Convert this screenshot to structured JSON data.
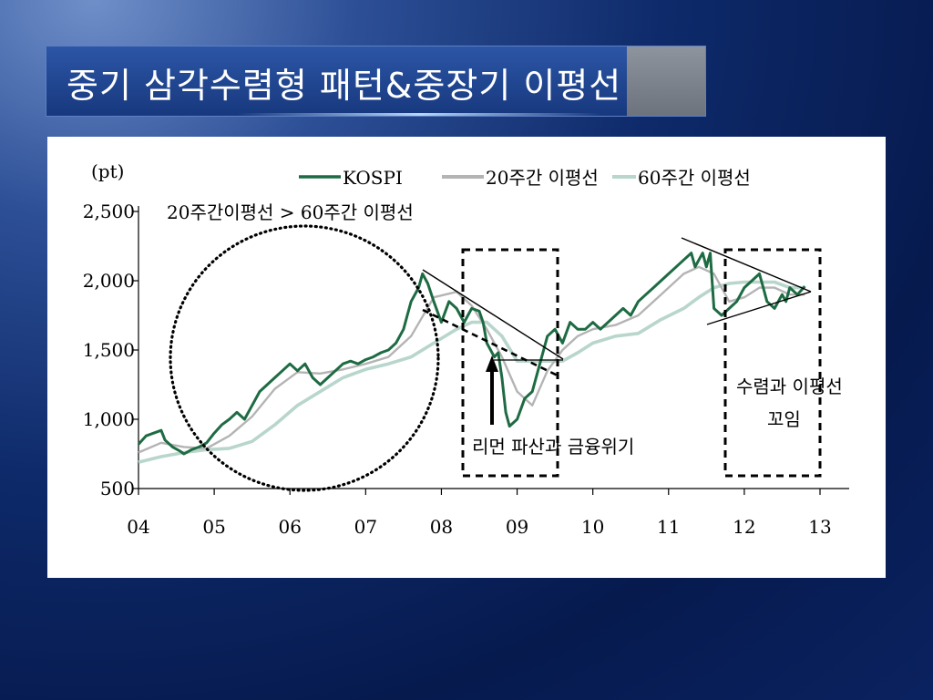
{
  "slide": {
    "title": "중기 삼각수렴형 패턴&중장기 이평선"
  },
  "chart_data": {
    "type": "line",
    "unit_label": "(pt)",
    "x_ticks": [
      "04",
      "05",
      "06",
      "07",
      "08",
      "09",
      "10",
      "11",
      "12",
      "13"
    ],
    "y_ticks": [
      "500",
      "1,000",
      "1,500",
      "2,000",
      "2,500"
    ],
    "ylim": [
      500,
      2500
    ],
    "xlim": [
      2004,
      2013
    ],
    "legend_position": "top",
    "series": [
      {
        "name": "KOSPI",
        "color": "#1e6b43",
        "x": [
          2004.0,
          2004.1,
          2004.2,
          2004.3,
          2004.35,
          2004.45,
          2004.55,
          2004.6,
          2004.7,
          2004.8,
          2004.9,
          2005.0,
          2005.1,
          2005.2,
          2005.3,
          2005.4,
          2005.5,
          2005.6,
          2005.7,
          2005.8,
          2005.9,
          2006.0,
          2006.1,
          2006.2,
          2006.3,
          2006.4,
          2006.5,
          2006.6,
          2006.7,
          2006.8,
          2006.9,
          2007.0,
          2007.1,
          2007.2,
          2007.3,
          2007.4,
          2007.5,
          2007.55,
          2007.6,
          2007.7,
          2007.75,
          2007.82,
          2007.9,
          2008.0,
          2008.1,
          2008.2,
          2008.3,
          2008.4,
          2008.5,
          2008.55,
          2008.6,
          2008.7,
          2008.75,
          2008.8,
          2008.85,
          2008.9,
          2009.0,
          2009.1,
          2009.2,
          2009.3,
          2009.4,
          2009.5,
          2009.6,
          2009.7,
          2009.8,
          2009.9,
          2010.0,
          2010.1,
          2010.2,
          2010.3,
          2010.4,
          2010.5,
          2010.6,
          2010.7,
          2010.8,
          2010.9,
          2011.0,
          2011.1,
          2011.2,
          2011.3,
          2011.35,
          2011.4,
          2011.45,
          2011.5,
          2011.55,
          2011.6,
          2011.7,
          2011.8,
          2011.9,
          2012.0,
          2012.1,
          2012.2,
          2012.25,
          2012.3,
          2012.4,
          2012.5,
          2012.55,
          2012.6,
          2012.7,
          2012.8
        ],
        "values": [
          820,
          880,
          900,
          920,
          850,
          800,
          770,
          750,
          780,
          800,
          830,
          900,
          960,
          1000,
          1050,
          1000,
          1100,
          1200,
          1250,
          1300,
          1350,
          1400,
          1350,
          1400,
          1300,
          1250,
          1300,
          1350,
          1400,
          1420,
          1400,
          1430,
          1450,
          1480,
          1500,
          1550,
          1650,
          1750,
          1850,
          1950,
          2050,
          1980,
          1850,
          1700,
          1850,
          1800,
          1700,
          1800,
          1780,
          1700,
          1550,
          1450,
          1480,
          1300,
          1050,
          950,
          1000,
          1150,
          1200,
          1400,
          1600,
          1650,
          1550,
          1700,
          1650,
          1650,
          1700,
          1650,
          1700,
          1750,
          1800,
          1750,
          1850,
          1900,
          1950,
          2000,
          2050,
          2100,
          2150,
          2200,
          2100,
          2150,
          2200,
          2100,
          2200,
          1800,
          1750,
          1800,
          1850,
          1950,
          2000,
          2050,
          1950,
          1850,
          1800,
          1900,
          1850,
          1950,
          1900,
          1960
        ]
      },
      {
        "name": "20주간 이평선",
        "color": "#b4b4b4",
        "x": [
          2004.0,
          2004.3,
          2004.6,
          2004.9,
          2005.2,
          2005.5,
          2005.8,
          2006.1,
          2006.4,
          2006.7,
          2007.0,
          2007.3,
          2007.6,
          2007.9,
          2008.2,
          2008.4,
          2008.6,
          2008.8,
          2009.0,
          2009.2,
          2009.4,
          2009.6,
          2009.8,
          2010.0,
          2010.3,
          2010.6,
          2010.9,
          2011.2,
          2011.4,
          2011.6,
          2011.8,
          2012.0,
          2012.2,
          2012.4,
          2012.6,
          2012.8
        ],
        "values": [
          760,
          830,
          800,
          790,
          880,
          1020,
          1220,
          1340,
          1330,
          1360,
          1400,
          1450,
          1600,
          1880,
          1920,
          1820,
          1650,
          1450,
          1200,
          1100,
          1350,
          1500,
          1600,
          1650,
          1680,
          1750,
          1900,
          2050,
          2100,
          2050,
          1850,
          1880,
          1950,
          1950,
          1900,
          1900
        ]
      },
      {
        "name": "60주간 이평선",
        "color": "#b8d6cc",
        "x": [
          2004.0,
          2004.3,
          2004.6,
          2004.9,
          2005.2,
          2005.5,
          2005.8,
          2006.1,
          2006.4,
          2006.7,
          2007.0,
          2007.3,
          2007.6,
          2007.9,
          2008.2,
          2008.4,
          2008.6,
          2008.8,
          2009.0,
          2009.2,
          2009.4,
          2009.6,
          2009.8,
          2010.0,
          2010.3,
          2010.6,
          2010.9,
          2011.2,
          2011.4,
          2011.6,
          2011.8,
          2012.0,
          2012.2,
          2012.4,
          2012.6,
          2012.8
        ],
        "values": [
          690,
          730,
          760,
          780,
          790,
          840,
          960,
          1100,
          1200,
          1300,
          1360,
          1400,
          1450,
          1550,
          1650,
          1700,
          1700,
          1600,
          1420,
          1420,
          1420,
          1420,
          1480,
          1550,
          1600,
          1620,
          1720,
          1800,
          1880,
          1950,
          1980,
          1990,
          1990,
          1990,
          1950,
          1950
        ]
      }
    ],
    "annotations": {
      "ma_condition": "20주간이평선 > 60주간 이평선",
      "lehman": "리먼 파산과 금융위기",
      "convergence_line1": "수렴과 이평선",
      "convergence_line2": "꼬임"
    }
  }
}
